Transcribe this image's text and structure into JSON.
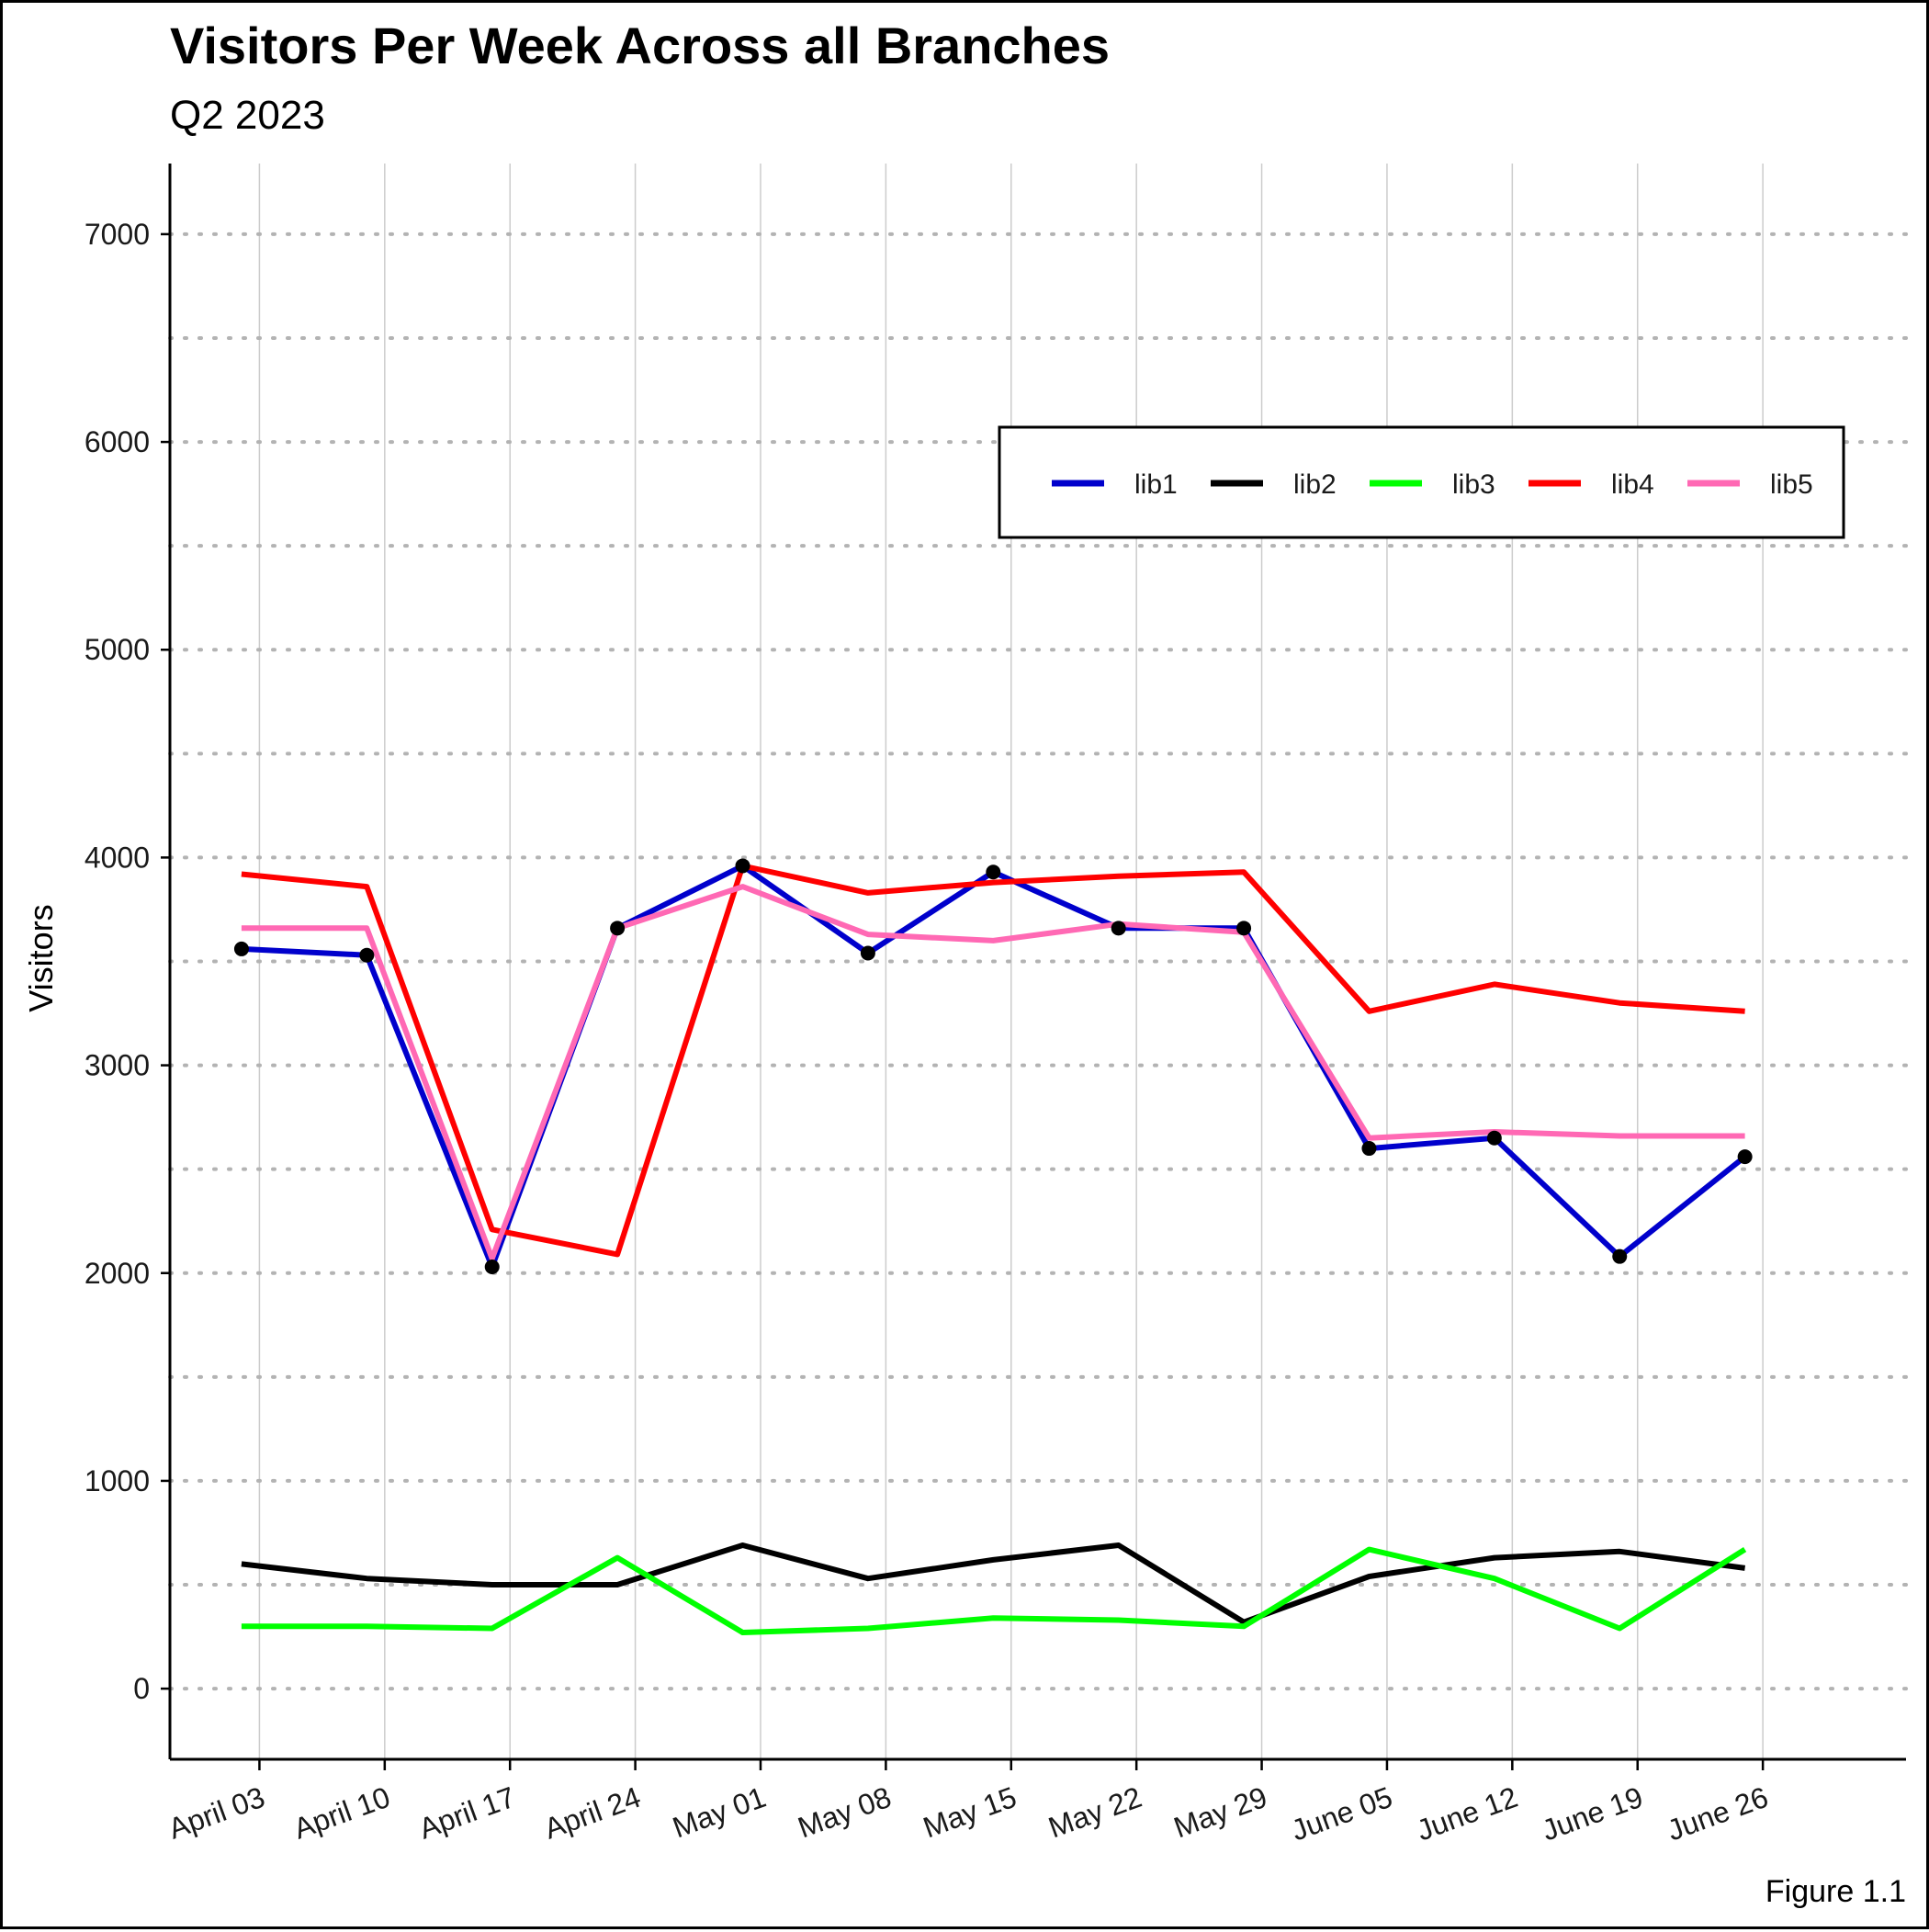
{
  "chart_data": {
    "type": "line",
    "title": "Visitors Per Week Across all Branches",
    "subtitle": "Q2 2023",
    "xlabel": "",
    "ylabel": "Visitors",
    "caption": "Figure 1.1",
    "x": [
      "2023-04-02",
      "2023-04-09",
      "2023-04-16",
      "2023-04-23",
      "2023-04-30",
      "2023-05-07",
      "2023-05-14",
      "2023-05-21",
      "2023-05-28",
      "2023-06-04",
      "2023-06-11",
      "2023-06-18",
      "2023-06-25"
    ],
    "x_ticks": [
      {
        "date": "2023-04-03",
        "label": "April 03"
      },
      {
        "date": "2023-04-10",
        "label": "April 10"
      },
      {
        "date": "2023-04-17",
        "label": "April 17"
      },
      {
        "date": "2023-04-24",
        "label": "April 24"
      },
      {
        "date": "2023-05-01",
        "label": "May 01"
      },
      {
        "date": "2023-05-08",
        "label": "May 08"
      },
      {
        "date": "2023-05-15",
        "label": "May 15"
      },
      {
        "date": "2023-05-22",
        "label": "May 22"
      },
      {
        "date": "2023-05-29",
        "label": "May 29"
      },
      {
        "date": "2023-06-05",
        "label": "June 05"
      },
      {
        "date": "2023-06-12",
        "label": "June 12"
      },
      {
        "date": "2023-06-19",
        "label": "June 19"
      },
      {
        "date": "2023-06-26",
        "label": "June 26"
      }
    ],
    "xlim": [
      "2023-03-29",
      "2023-07-04"
    ],
    "y_ticks": [
      0,
      1000,
      2000,
      3000,
      4000,
      5000,
      6000,
      7000
    ],
    "ylim": [
      -340,
      7340
    ],
    "grid": {
      "major_x": true,
      "y_dotted": true
    },
    "legend_position": "top-right",
    "series": [
      {
        "name": "lib1",
        "color": "#0000CC",
        "markers": true,
        "values": [
          3560,
          3530,
          2030,
          3660,
          3960,
          3540,
          3930,
          3660,
          3660,
          2600,
          2650,
          2080,
          2560
        ]
      },
      {
        "name": "lib2",
        "color": "#000000",
        "markers": false,
        "values": [
          600,
          530,
          500,
          500,
          690,
          530,
          620,
          690,
          320,
          540,
          630,
          660,
          580
        ]
      },
      {
        "name": "lib3",
        "color": "#00FF00",
        "markers": false,
        "values": [
          300,
          300,
          290,
          630,
          270,
          290,
          340,
          330,
          300,
          670,
          530,
          290,
          670
        ]
      },
      {
        "name": "lib4",
        "color": "#FF0000",
        "markers": false,
        "values": [
          3920,
          3860,
          2210,
          2090,
          3960,
          3830,
          3880,
          3910,
          3930,
          3260,
          3390,
          3300,
          3260
        ]
      },
      {
        "name": "lib5",
        "color": "#FF69B4",
        "markers": false,
        "values": [
          3660,
          3660,
          2070,
          3660,
          3860,
          3630,
          3600,
          3680,
          3640,
          2650,
          2680,
          2660,
          2660
        ]
      }
    ]
  }
}
